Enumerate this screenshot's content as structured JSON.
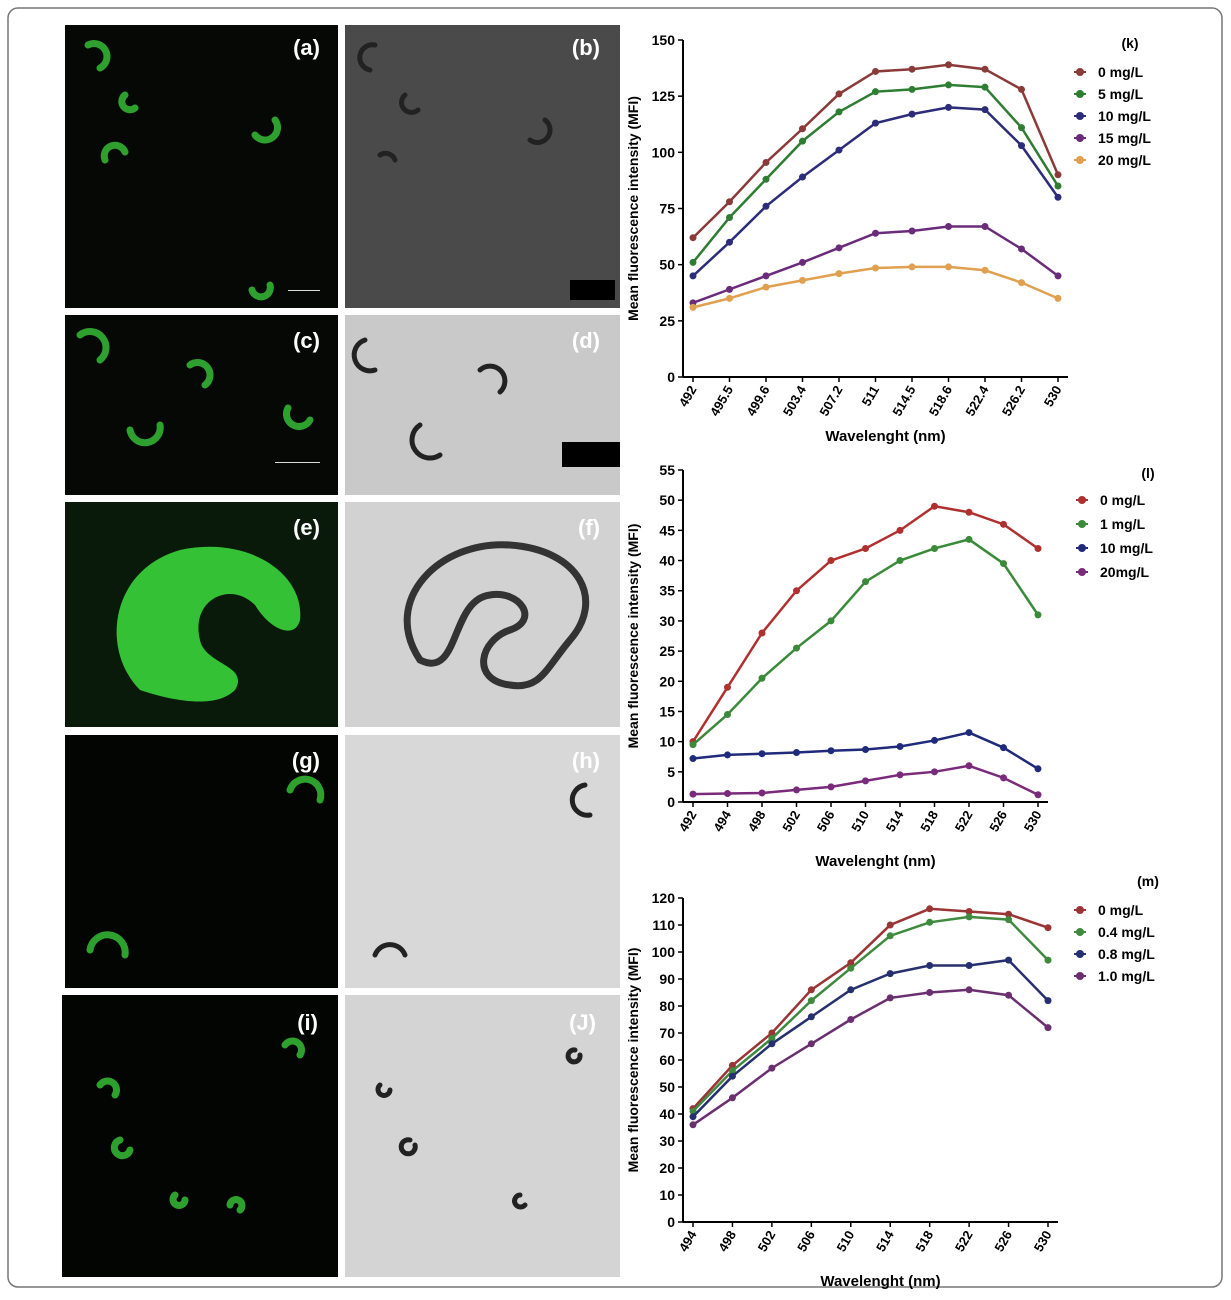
{
  "panels": [
    {
      "label": "(a)"
    },
    {
      "label": "(b)"
    },
    {
      "label": "(c)"
    },
    {
      "label": "(d)"
    },
    {
      "label": "(e)"
    },
    {
      "label": "(f)"
    },
    {
      "label": "(g)"
    },
    {
      "label": "(h)"
    },
    {
      "label": "(i)"
    },
    {
      "label": "(J)"
    }
  ],
  "chart_data": [
    {
      "type": "line",
      "tag": "(k)",
      "y_label": "Mean fluorescence intensity (MFI)",
      "x_label": "Wavelenght (nm)",
      "categories": [
        "492",
        "495.5",
        "499.6",
        "503.4",
        "507.2",
        "511",
        "514.5",
        "518.6",
        "522.4",
        "526.2",
        "530"
      ],
      "ylim": [
        0,
        150
      ],
      "yticks": [
        0,
        25,
        50,
        75,
        100,
        125,
        150
      ],
      "series": [
        {
          "name": "0 mg/L",
          "color": "#8b3a3a",
          "values": [
            62,
            78,
            95.5,
            110.5,
            126,
            136,
            137,
            139,
            137,
            128,
            90
          ]
        },
        {
          "name": "5 mg/L",
          "color": "#2e7d32",
          "values": [
            51,
            71,
            88,
            105,
            118,
            127,
            128,
            130,
            129,
            111,
            85
          ]
        },
        {
          "name": "10 mg/L",
          "color": "#2c2c7a",
          "values": [
            45,
            60,
            76,
            89,
            101,
            113,
            117,
            120,
            119,
            103,
            80
          ]
        },
        {
          "name": "15 mg/L",
          "color": "#6a2c7a",
          "values": [
            33,
            39,
            45,
            51,
            57.5,
            64,
            65,
            67,
            67,
            57,
            45
          ]
        },
        {
          "name": "20 mg/L",
          "color": "#e0a050",
          "values": [
            31,
            35,
            40,
            43,
            46,
            48.5,
            49,
            49,
            47.5,
            42,
            35
          ]
        }
      ]
    },
    {
      "type": "line",
      "tag": "(l)",
      "y_label": "Mean fluorescence intensity (MFI)",
      "x_label": "Wavelenght (nm)",
      "categories": [
        "492",
        "494",
        "498",
        "502",
        "506",
        "510",
        "514",
        "518",
        "522",
        "526",
        "530"
      ],
      "ylim": [
        0,
        55
      ],
      "yticks": [
        0,
        5,
        10,
        15,
        20,
        25,
        30,
        35,
        40,
        45,
        50,
        55
      ],
      "series": [
        {
          "name": "0 mg/L",
          "color": "#b03030",
          "values": [
            10,
            19,
            28,
            35,
            40,
            42,
            45,
            49,
            48,
            46,
            42
          ]
        },
        {
          "name": "1 mg/L",
          "color": "#3a8a3a",
          "values": [
            9.5,
            14.5,
            20.5,
            25.5,
            30,
            36.5,
            40,
            42,
            43.5,
            39.5,
            31
          ]
        },
        {
          "name": "10 mg/L",
          "color": "#1f2a7a",
          "values": [
            7.2,
            7.8,
            8,
            8.2,
            8.5,
            8.7,
            9.2,
            10.2,
            11.5,
            9,
            5.5
          ]
        },
        {
          "name": "20mg/L",
          "color": "#7a2a7a",
          "values": [
            1.3,
            1.4,
            1.5,
            2,
            2.5,
            3.5,
            4.5,
            5,
            6,
            4,
            1.2
          ]
        }
      ]
    },
    {
      "type": "line",
      "tag": "(m)",
      "y_label": "Mean fluorescence intensity (MFI)",
      "x_label": "Wavelenght (nm)",
      "categories": [
        "494",
        "498",
        "502",
        "506",
        "510",
        "514",
        "518",
        "522",
        "526",
        "530"
      ],
      "ylim": [
        0,
        120
      ],
      "yticks": [
        0,
        10,
        20,
        30,
        40,
        50,
        60,
        70,
        80,
        90,
        100,
        110,
        120
      ],
      "series": [
        {
          "name": "0 mg/L",
          "color": "#9b3535",
          "values": [
            42,
            58,
            70,
            86,
            96,
            110,
            116,
            115,
            114,
            109
          ]
        },
        {
          "name": "0.4 mg/L",
          "color": "#3f8a3f",
          "values": [
            41,
            56,
            68,
            82,
            94,
            106,
            111,
            113,
            112,
            97
          ]
        },
        {
          "name": "0.8 mg/L",
          "color": "#27306e",
          "values": [
            39,
            54,
            66,
            76,
            86,
            92,
            95,
            95,
            97,
            82
          ]
        },
        {
          "name": "1.0 mg/L",
          "color": "#6a2f6e",
          "values": [
            36,
            46,
            57,
            66,
            75,
            83,
            85,
            86,
            84,
            72
          ]
        }
      ]
    }
  ]
}
